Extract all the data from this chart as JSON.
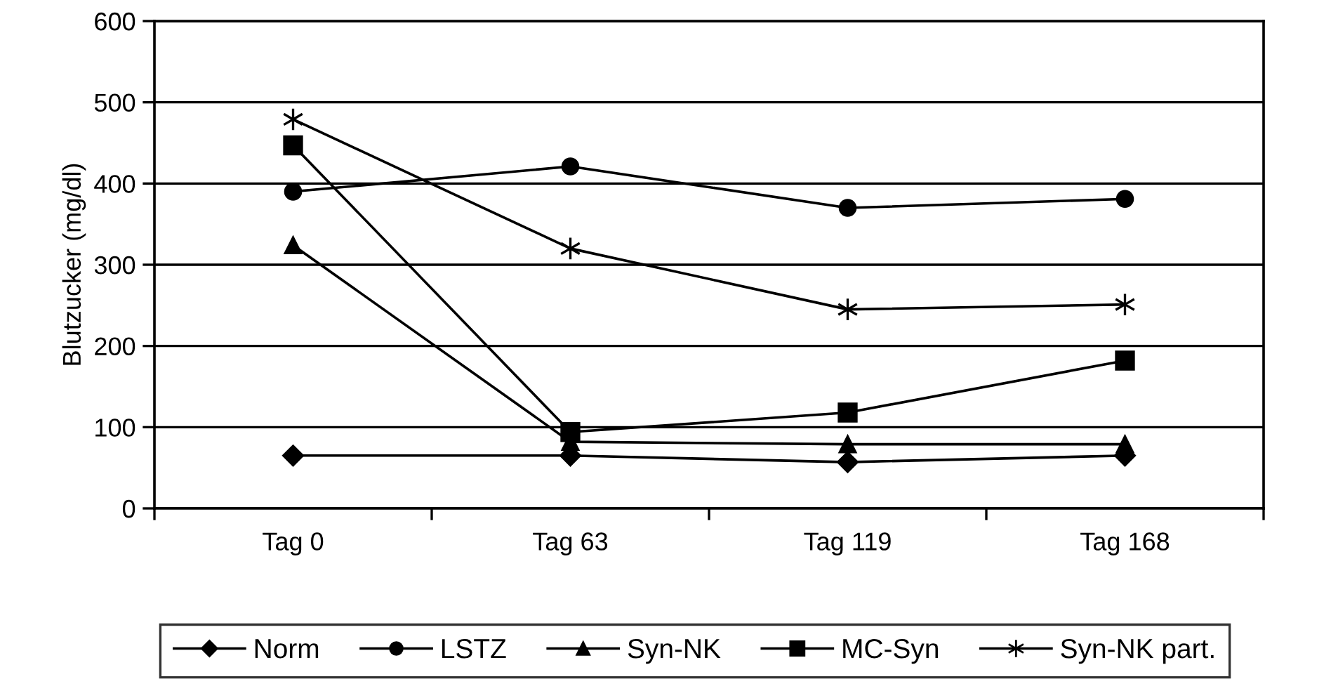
{
  "chart_data": {
    "type": "line",
    "ylabel": "Blutzucker (mg/dl)",
    "categories": [
      "Tag 0",
      "Tag 63",
      "Tag 119",
      "Tag 168"
    ],
    "series": [
      {
        "name": "Norm",
        "color": "#000000",
        "marker": "diamond",
        "values": [
          65,
          65,
          57,
          65
        ]
      },
      {
        "name": "LSTZ",
        "color": "#000000",
        "marker": "circle",
        "values": [
          390,
          421,
          370,
          381
        ]
      },
      {
        "name": "Syn-NK",
        "color": "#000000",
        "marker": "triangle",
        "values": [
          324,
          82,
          79,
          79
        ]
      },
      {
        "name": "MC-Syn",
        "color": "#000000",
        "marker": "square",
        "values": [
          447,
          94,
          118,
          182
        ]
      },
      {
        "name": "Syn-NK part.",
        "color": "#000000",
        "marker": "cross",
        "values": [
          479,
          320,
          245,
          251
        ]
      }
    ],
    "ylim": [
      0,
      600
    ],
    "yticks": [
      0,
      100,
      200,
      300,
      400,
      500,
      600
    ],
    "grid": "y",
    "legend": "bottom",
    "line_style": "solid"
  }
}
